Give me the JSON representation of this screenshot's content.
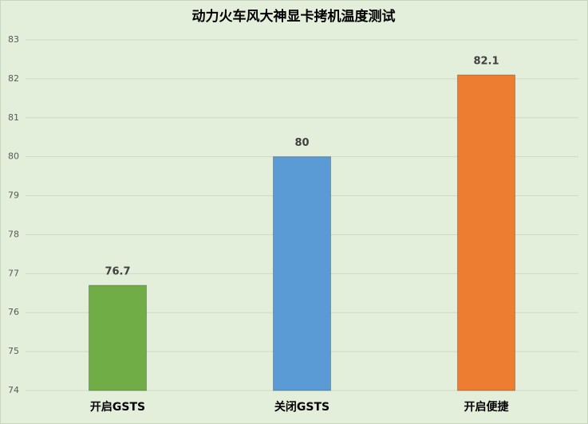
{
  "chart_data": {
    "type": "bar",
    "title": "动力火车风大神显卡拷机温度测试",
    "categories": [
      "开启GSTS",
      "关闭GSTS",
      "开启便捷"
    ],
    "values": [
      76.7,
      80,
      82.1
    ],
    "colors": [
      "#70ad47",
      "#5b9bd5",
      "#ed7d31"
    ],
    "ylim": [
      74,
      83
    ],
    "yticks": [
      74,
      75,
      76,
      77,
      78,
      79,
      80,
      81,
      82,
      83
    ],
    "grid": true
  }
}
